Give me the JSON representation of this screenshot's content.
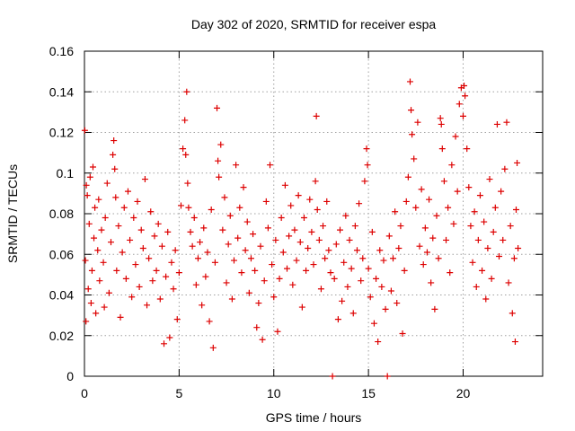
{
  "chart_data": {
    "type": "scatter",
    "title": "Day 302 of 2020, SRMTID for receiver espa",
    "xlabel": "GPS time / hours",
    "ylabel": "SRMTID / TECUs",
    "xlim": [
      0,
      24.2
    ],
    "ylim": [
      0,
      0.16
    ],
    "x_ticks": [
      0,
      5,
      10,
      15,
      20
    ],
    "x_tick_labels": [
      "0",
      "5",
      "10",
      "15",
      "20"
    ],
    "y_ticks": [
      0,
      0.02,
      0.04,
      0.06,
      0.08,
      0.1,
      0.12,
      0.14,
      0.16
    ],
    "y_tick_labels": [
      "0",
      "0.02",
      "0.04",
      "0.06",
      "0.08",
      "0.1",
      "0.12",
      "0.14",
      "0.16"
    ],
    "grid": true,
    "marker": "+",
    "colors": {
      "marker": "#dd0000",
      "grid": "#a0a0a0",
      "axis": "#000000"
    },
    "series": [
      {
        "name": "SRMTID",
        "points": [
          [
            0.02,
            0.121
          ],
          [
            0.05,
            0.057
          ],
          [
            0.08,
            0.027
          ],
          [
            0.1,
            0.094
          ],
          [
            0.15,
            0.089
          ],
          [
            0.2,
            0.043
          ],
          [
            0.25,
            0.075
          ],
          [
            0.3,
            0.098
          ],
          [
            0.35,
            0.036
          ],
          [
            0.4,
            0.052
          ],
          [
            0.45,
            0.103
          ],
          [
            0.5,
            0.068
          ],
          [
            0.55,
            0.083
          ],
          [
            0.6,
            0.031
          ],
          [
            0.7,
            0.062
          ],
          [
            0.75,
            0.087
          ],
          [
            0.8,
            0.047
          ],
          [
            0.9,
            0.072
          ],
          [
            1.0,
            0.056
          ],
          [
            1.05,
            0.034
          ],
          [
            1.1,
            0.078
          ],
          [
            1.2,
            0.095
          ],
          [
            1.3,
            0.041
          ],
          [
            1.4,
            0.066
          ],
          [
            1.5,
            0.109
          ],
          [
            1.55,
            0.116
          ],
          [
            1.6,
            0.102
          ],
          [
            1.65,
            0.088
          ],
          [
            1.7,
            0.052
          ],
          [
            1.8,
            0.074
          ],
          [
            1.9,
            0.029
          ],
          [
            2.0,
            0.061
          ],
          [
            2.1,
            0.083
          ],
          [
            2.2,
            0.048
          ],
          [
            2.3,
            0.091
          ],
          [
            2.4,
            0.067
          ],
          [
            2.5,
            0.039
          ],
          [
            2.6,
            0.078
          ],
          [
            2.7,
            0.055
          ],
          [
            2.8,
            0.086
          ],
          [
            2.9,
            0.044
          ],
          [
            3.0,
            0.072
          ],
          [
            3.1,
            0.063
          ],
          [
            3.2,
            0.097
          ],
          [
            3.3,
            0.035
          ],
          [
            3.4,
            0.058
          ],
          [
            3.5,
            0.081
          ],
          [
            3.6,
            0.047
          ],
          [
            3.7,
            0.069
          ],
          [
            3.8,
            0.052
          ],
          [
            3.9,
            0.075
          ],
          [
            4.0,
            0.038
          ],
          [
            4.1,
            0.064
          ],
          [
            4.2,
            0.016
          ],
          [
            4.3,
            0.049
          ],
          [
            4.4,
            0.071
          ],
          [
            4.5,
            0.019
          ],
          [
            4.6,
            0.056
          ],
          [
            4.7,
            0.043
          ],
          [
            4.8,
            0.062
          ],
          [
            4.9,
            0.028
          ],
          [
            5.0,
            0.051
          ],
          [
            5.1,
            0.084
          ],
          [
            5.2,
            0.112
          ],
          [
            5.3,
            0.126
          ],
          [
            5.35,
            0.109
          ],
          [
            5.4,
            0.14
          ],
          [
            5.45,
            0.095
          ],
          [
            5.5,
            0.083
          ],
          [
            5.6,
            0.071
          ],
          [
            5.7,
            0.064
          ],
          [
            5.8,
            0.078
          ],
          [
            5.9,
            0.045
          ],
          [
            6.0,
            0.058
          ],
          [
            6.1,
            0.066
          ],
          [
            6.2,
            0.035
          ],
          [
            6.3,
            0.073
          ],
          [
            6.4,
            0.049
          ],
          [
            6.5,
            0.061
          ],
          [
            6.6,
            0.027
          ],
          [
            6.7,
            0.082
          ],
          [
            6.8,
            0.014
          ],
          [
            6.9,
            0.056
          ],
          [
            7.0,
            0.132
          ],
          [
            7.05,
            0.106
          ],
          [
            7.1,
            0.098
          ],
          [
            7.2,
            0.114
          ],
          [
            7.3,
            0.072
          ],
          [
            7.4,
            0.088
          ],
          [
            7.5,
            0.046
          ],
          [
            7.6,
            0.065
          ],
          [
            7.7,
            0.079
          ],
          [
            7.8,
            0.038
          ],
          [
            7.9,
            0.057
          ],
          [
            8.0,
            0.104
          ],
          [
            8.1,
            0.068
          ],
          [
            8.2,
            0.083
          ],
          [
            8.3,
            0.051
          ],
          [
            8.4,
            0.093
          ],
          [
            8.5,
            0.062
          ],
          [
            8.6,
            0.076
          ],
          [
            8.7,
            0.041
          ],
          [
            8.8,
            0.058
          ],
          [
            8.9,
            0.07
          ],
          [
            9.0,
            0.052
          ],
          [
            9.1,
            0.024
          ],
          [
            9.2,
            0.036
          ],
          [
            9.3,
            0.064
          ],
          [
            9.4,
            0.018
          ],
          [
            9.5,
            0.047
          ],
          [
            9.6,
            0.086
          ],
          [
            9.7,
            0.073
          ],
          [
            9.8,
            0.104
          ],
          [
            9.9,
            0.055
          ],
          [
            10.0,
            0.039
          ],
          [
            10.1,
            0.067
          ],
          [
            10.2,
            0.022
          ],
          [
            10.3,
            0.048
          ],
          [
            10.4,
            0.078
          ],
          [
            10.5,
            0.061
          ],
          [
            10.6,
            0.094
          ],
          [
            10.7,
            0.053
          ],
          [
            10.8,
            0.069
          ],
          [
            10.9,
            0.084
          ],
          [
            11.0,
            0.045
          ],
          [
            11.1,
            0.072
          ],
          [
            11.2,
            0.057
          ],
          [
            11.3,
            0.089
          ],
          [
            11.4,
            0.066
          ],
          [
            11.5,
            0.034
          ],
          [
            11.6,
            0.078
          ],
          [
            11.7,
            0.052
          ],
          [
            11.8,
            0.063
          ],
          [
            11.9,
            0.087
          ],
          [
            12.0,
            0.071
          ],
          [
            12.1,
            0.055
          ],
          [
            12.2,
            0.096
          ],
          [
            12.25,
            0.128
          ],
          [
            12.3,
            0.082
          ],
          [
            12.4,
            0.067
          ],
          [
            12.5,
            0.043
          ],
          [
            12.6,
            0.074
          ],
          [
            12.7,
            0.058
          ],
          [
            12.8,
            0.086
          ],
          [
            12.9,
            0.062
          ],
          [
            13.0,
            0.051
          ],
          [
            13.1,
            0.0
          ],
          [
            13.2,
            0.048
          ],
          [
            13.3,
            0.065
          ],
          [
            13.4,
            0.028
          ],
          [
            13.5,
            0.072
          ],
          [
            13.6,
            0.037
          ],
          [
            13.7,
            0.056
          ],
          [
            13.8,
            0.079
          ],
          [
            13.9,
            0.044
          ],
          [
            14.0,
            0.067
          ],
          [
            14.1,
            0.053
          ],
          [
            14.2,
            0.031
          ],
          [
            14.3,
            0.074
          ],
          [
            14.4,
            0.062
          ],
          [
            14.5,
            0.085
          ],
          [
            14.6,
            0.047
          ],
          [
            14.7,
            0.058
          ],
          [
            14.8,
            0.096
          ],
          [
            14.9,
            0.112
          ],
          [
            14.95,
            0.104
          ],
          [
            15.0,
            0.053
          ],
          [
            15.1,
            0.039
          ],
          [
            15.2,
            0.071
          ],
          [
            15.3,
            0.026
          ],
          [
            15.4,
            0.048
          ],
          [
            15.5,
            0.017
          ],
          [
            15.6,
            0.062
          ],
          [
            15.7,
            0.044
          ],
          [
            15.8,
            0.057
          ],
          [
            15.9,
            0.033
          ],
          [
            16.0,
            0.0
          ],
          [
            16.1,
            0.069
          ],
          [
            16.2,
            0.042
          ],
          [
            16.3,
            0.058
          ],
          [
            16.4,
            0.081
          ],
          [
            16.5,
            0.036
          ],
          [
            16.6,
            0.063
          ],
          [
            16.7,
            0.074
          ],
          [
            16.8,
            0.021
          ],
          [
            16.9,
            0.052
          ],
          [
            17.0,
            0.086
          ],
          [
            17.1,
            0.098
          ],
          [
            17.2,
            0.145
          ],
          [
            17.25,
            0.131
          ],
          [
            17.3,
            0.119
          ],
          [
            17.4,
            0.107
          ],
          [
            17.5,
            0.083
          ],
          [
            17.6,
            0.125
          ],
          [
            17.7,
            0.064
          ],
          [
            17.8,
            0.092
          ],
          [
            17.9,
            0.055
          ],
          [
            18.0,
            0.073
          ],
          [
            18.1,
            0.061
          ],
          [
            18.2,
            0.087
          ],
          [
            18.3,
            0.046
          ],
          [
            18.4,
            0.068
          ],
          [
            18.5,
            0.033
          ],
          [
            18.6,
            0.079
          ],
          [
            18.7,
            0.058
          ],
          [
            18.8,
            0.127
          ],
          [
            18.85,
            0.124
          ],
          [
            18.9,
            0.112
          ],
          [
            19.0,
            0.096
          ],
          [
            19.1,
            0.067
          ],
          [
            19.2,
            0.083
          ],
          [
            19.3,
            0.051
          ],
          [
            19.4,
            0.104
          ],
          [
            19.5,
            0.075
          ],
          [
            19.6,
            0.118
          ],
          [
            19.7,
            0.091
          ],
          [
            19.8,
            0.134
          ],
          [
            19.9,
            0.142
          ],
          [
            20.0,
            0.128
          ],
          [
            20.05,
            0.143
          ],
          [
            20.1,
            0.138
          ],
          [
            20.2,
            0.112
          ],
          [
            20.3,
            0.093
          ],
          [
            20.4,
            0.074
          ],
          [
            20.5,
            0.056
          ],
          [
            20.6,
            0.081
          ],
          [
            20.7,
            0.044
          ],
          [
            20.8,
            0.067
          ],
          [
            20.9,
            0.089
          ],
          [
            21.0,
            0.052
          ],
          [
            21.1,
            0.076
          ],
          [
            21.2,
            0.038
          ],
          [
            21.3,
            0.063
          ],
          [
            21.4,
            0.097
          ],
          [
            21.5,
            0.048
          ],
          [
            21.6,
            0.071
          ],
          [
            21.7,
            0.083
          ],
          [
            21.8,
            0.124
          ],
          [
            21.9,
            0.059
          ],
          [
            22.0,
            0.091
          ],
          [
            22.1,
            0.067
          ],
          [
            22.2,
            0.102
          ],
          [
            22.3,
            0.125
          ],
          [
            22.4,
            0.046
          ],
          [
            22.5,
            0.074
          ],
          [
            22.6,
            0.031
          ],
          [
            22.7,
            0.058
          ],
          [
            22.75,
            0.017
          ],
          [
            22.8,
            0.082
          ],
          [
            22.85,
            0.105
          ],
          [
            22.9,
            0.063
          ]
        ]
      }
    ]
  }
}
